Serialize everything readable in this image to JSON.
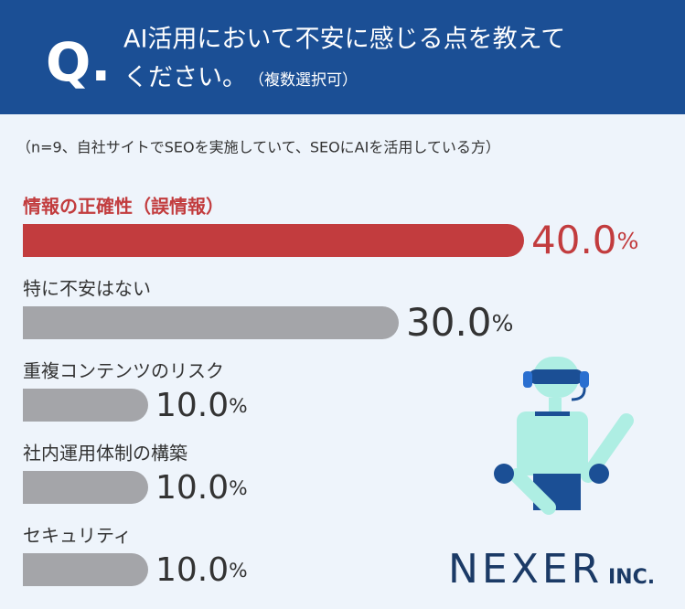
{
  "chart_data": {
    "type": "hbar",
    "question_mark": "Q.",
    "title": [
      "AI活用において不安に感じる点を教えて",
      "ください。"
    ],
    "title_note": "（複数選択可）",
    "subtitle": "（n=9、自社サイトでSEOを実施していて、SEOにAIを活用している方）",
    "categories": [
      "情報の正確性（誤情報）",
      "特に不安はない",
      "重複コンテンツのリスク",
      "社内運用体制の構築",
      "セキュリティ"
    ],
    "values": [
      40,
      30,
      10,
      10,
      10
    ],
    "value_labels": [
      "40.0%",
      "30.0%",
      "10.0%",
      "10.0%",
      "10.0%"
    ],
    "colors": [
      "#c23c3e",
      "#a4a5a9",
      "#a4a5a9",
      "#a4a5a9",
      "#a4a5a9"
    ],
    "xlim": [
      0,
      40
    ],
    "brand": "NEXER",
    "brand_suffix": "INC."
  }
}
